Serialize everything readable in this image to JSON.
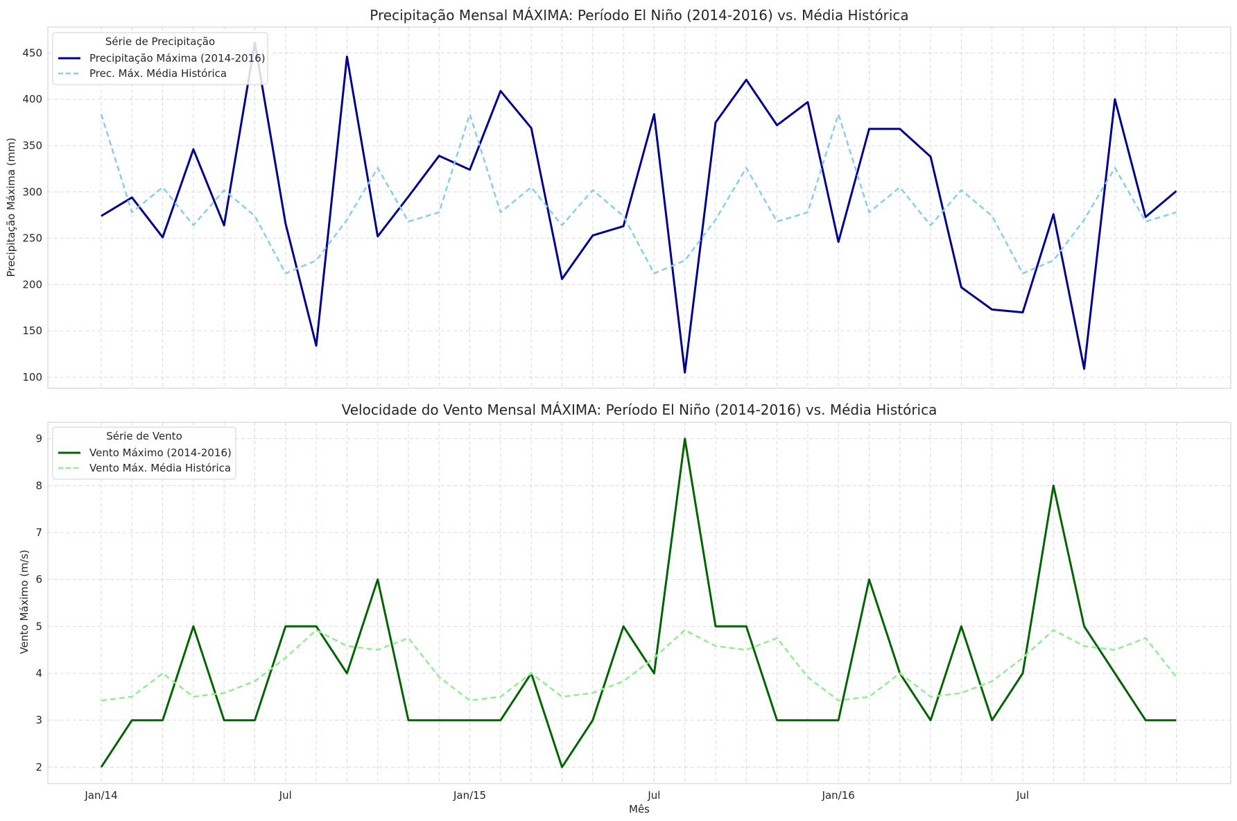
{
  "figure": {
    "xlabel": "Mês"
  },
  "chart_data": [
    {
      "type": "line",
      "title": "Precipitação Mensal MÁXIMA: Período El Niño (2014-2016) vs. Média Histórica",
      "xlabel": "",
      "ylabel": "Precipitação Máxima (mm)",
      "x": [
        "2014-01",
        "2014-02",
        "2014-03",
        "2014-04",
        "2014-05",
        "2014-06",
        "2014-07",
        "2014-08",
        "2014-09",
        "2014-10",
        "2014-11",
        "2014-12",
        "2015-01",
        "2015-02",
        "2015-03",
        "2015-04",
        "2015-05",
        "2015-06",
        "2015-07",
        "2015-08",
        "2015-09",
        "2015-10",
        "2015-11",
        "2015-12",
        "2016-01",
        "2016-02",
        "2016-03",
        "2016-04",
        "2016-05",
        "2016-06",
        "2016-07",
        "2016-08",
        "2016-09",
        "2016-10",
        "2016-11",
        "2016-12"
      ],
      "xticks": [
        "Jan/14",
        "Jul",
        "Jan/15",
        "Jul",
        "Jan/16",
        "Jul"
      ],
      "ylim": [
        88,
        478
      ],
      "yticks": [
        100,
        150,
        200,
        250,
        300,
        350,
        400,
        450
      ],
      "grid": true,
      "legend": {
        "title": "Série de Precipitação",
        "placement": "top-left"
      },
      "series": [
        {
          "name": "Precipitação Máxima (2014-2016)",
          "color": "#00008b",
          "style": "solid",
          "values": [
            274,
            294,
            251,
            346,
            264,
            461,
            266,
            134,
            446,
            252,
            295,
            339,
            324,
            409,
            369,
            206,
            253,
            263,
            384,
            105,
            375,
            421,
            372,
            397,
            246,
            368,
            368,
            338,
            197,
            173,
            170,
            276,
            109,
            400,
            273,
            301
          ]
        },
        {
          "name": "Prec. Máx. Média Histórica",
          "color": "#87ceeb",
          "style": "dashed",
          "values": [
            384,
            278,
            305,
            264,
            302,
            274,
            212,
            226,
            270,
            326,
            268,
            278,
            384,
            278,
            305,
            264,
            302,
            274,
            212,
            226,
            270,
            326,
            268,
            278,
            384,
            278,
            305,
            264,
            302,
            274,
            212,
            226,
            270,
            326,
            268,
            278
          ]
        }
      ]
    },
    {
      "type": "line",
      "title": "Velocidade do Vento Mensal MÁXIMA: Período El Niño (2014-2016) vs. Média Histórica",
      "xlabel": "Mês",
      "ylabel": "Vento Máximo (m/s)",
      "x": [
        "2014-01",
        "2014-02",
        "2014-03",
        "2014-04",
        "2014-05",
        "2014-06",
        "2014-07",
        "2014-08",
        "2014-09",
        "2014-10",
        "2014-11",
        "2014-12",
        "2015-01",
        "2015-02",
        "2015-03",
        "2015-04",
        "2015-05",
        "2015-06",
        "2015-07",
        "2015-08",
        "2015-09",
        "2015-10",
        "2015-11",
        "2015-12",
        "2016-01",
        "2016-02",
        "2016-03",
        "2016-04",
        "2016-05",
        "2016-06",
        "2016-07",
        "2016-08",
        "2016-09",
        "2016-10",
        "2016-11",
        "2016-12"
      ],
      "xticks": [
        "Jan/14",
        "Jul",
        "Jan/15",
        "Jul",
        "Jan/16",
        "Jul"
      ],
      "ylim": [
        1.65,
        9.35
      ],
      "yticks": [
        2,
        3,
        4,
        5,
        6,
        7,
        8,
        9
      ],
      "grid": true,
      "legend": {
        "title": "Série de Vento",
        "placement": "top-left"
      },
      "series": [
        {
          "name": "Vento Máximo (2014-2016)",
          "color": "#006400",
          "style": "solid",
          "values": [
            2,
            3,
            3,
            5,
            3,
            3,
            5,
            5,
            4,
            6,
            3,
            3,
            3,
            3,
            4,
            2,
            3,
            5,
            4,
            9,
            5,
            5,
            3,
            3,
            3,
            6,
            4,
            3,
            5,
            3,
            4,
            8,
            5,
            4,
            3,
            3
          ]
        },
        {
          "name": "Vento Máx. Média Histórica",
          "color": "#90ee90",
          "style": "dashed",
          "values": [
            3.42,
            3.5,
            4.0,
            3.5,
            3.58,
            3.83,
            4.33,
            4.92,
            4.58,
            4.5,
            4.75,
            3.92,
            3.42,
            3.5,
            4.0,
            3.5,
            3.58,
            3.83,
            4.33,
            4.92,
            4.58,
            4.5,
            4.75,
            3.92,
            3.42,
            3.5,
            4.0,
            3.5,
            3.58,
            3.83,
            4.33,
            4.92,
            4.58,
            4.5,
            4.75,
            3.92
          ]
        }
      ]
    }
  ]
}
